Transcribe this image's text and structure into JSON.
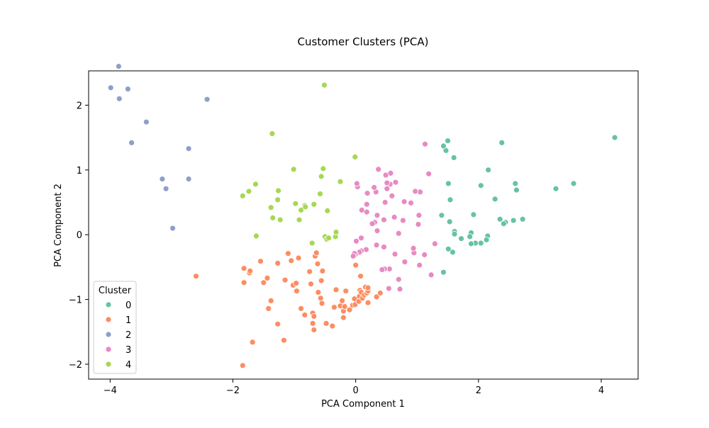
{
  "chart_data": {
    "type": "scatter",
    "title": "Customer Clusters (PCA)",
    "xlabel": "PCA Component 1",
    "ylabel": "PCA Component 2",
    "xlim": [
      -4.35,
      4.6
    ],
    "ylim": [
      -2.23,
      2.53
    ],
    "x_ticks": [
      -4,
      -2,
      0,
      2,
      4
    ],
    "y_ticks": [
      -2,
      -1,
      0,
      1,
      2
    ],
    "x_tick_labels": [
      "−4",
      "−2",
      "0",
      "2",
      "4"
    ],
    "y_tick_labels": [
      "−2",
      "−1",
      "0",
      "1",
      "2"
    ],
    "grid": false,
    "legend": {
      "title": "Cluster",
      "placement": "lower-left",
      "entries": [
        "0",
        "1",
        "2",
        "3",
        "4"
      ]
    },
    "colors": [
      "#66c2a5",
      "#fc8d62",
      "#8da0cb",
      "#e78ac3",
      "#a6d854"
    ],
    "series": [
      {
        "name": "0",
        "points": [
          [
            4.22,
            1.5
          ],
          [
            3.55,
            0.79
          ],
          [
            3.26,
            0.71
          ],
          [
            2.72,
            0.24
          ],
          [
            2.62,
            0.69
          ],
          [
            2.6,
            0.79
          ],
          [
            2.57,
            0.22
          ],
          [
            2.44,
            0.19
          ],
          [
            2.41,
            0.17
          ],
          [
            2.38,
            1.42
          ],
          [
            2.35,
            0.24
          ],
          [
            2.27,
            0.55
          ],
          [
            2.16,
            1.0
          ],
          [
            2.15,
            -0.02
          ],
          [
            2.13,
            -0.08
          ],
          [
            2.04,
            0.76
          ],
          [
            2.04,
            -0.13
          ],
          [
            1.95,
            -0.13
          ],
          [
            1.92,
            0.31
          ],
          [
            1.88,
            -0.14
          ],
          [
            1.88,
            0.03
          ],
          [
            1.86,
            -0.03
          ],
          [
            1.72,
            -0.06
          ],
          [
            1.61,
            0.05
          ],
          [
            1.61,
            0.01
          ],
          [
            1.6,
            1.19
          ],
          [
            1.58,
            -0.27
          ],
          [
            1.54,
            0.54
          ],
          [
            1.53,
            0.2
          ],
          [
            1.51,
            -0.22
          ],
          [
            1.51,
            0.79
          ],
          [
            1.5,
            1.45
          ],
          [
            1.47,
            1.3
          ],
          [
            1.43,
            1.37
          ],
          [
            1.43,
            -0.58
          ],
          [
            1.4,
            0.3
          ]
        ]
      },
      {
        "name": "1",
        "points": [
          [
            -2.6,
            -0.64
          ],
          [
            -1.84,
            -2.02
          ],
          [
            -1.82,
            -0.74
          ],
          [
            -1.82,
            -0.52
          ],
          [
            -1.73,
            -0.59
          ],
          [
            -1.72,
            -0.56
          ],
          [
            -1.68,
            -1.66
          ],
          [
            -1.55,
            -0.41
          ],
          [
            -1.5,
            -0.74
          ],
          [
            -1.44,
            -0.67
          ],
          [
            -1.42,
            -1.14
          ],
          [
            -1.38,
            -1.02
          ],
          [
            -1.27,
            -0.44
          ],
          [
            -1.27,
            -1.38
          ],
          [
            -1.17,
            -1.63
          ],
          [
            -1.15,
            -0.7
          ],
          [
            -1.1,
            -0.29
          ],
          [
            -1.05,
            -0.4
          ],
          [
            -1.02,
            -0.78
          ],
          [
            -0.97,
            -0.75
          ],
          [
            -0.96,
            -0.87
          ],
          [
            -0.93,
            -0.36
          ],
          [
            -0.89,
            -1.14
          ],
          [
            -0.83,
            -1.24
          ],
          [
            -0.75,
            -0.57
          ],
          [
            -0.73,
            -0.76
          ],
          [
            -0.7,
            -1.21
          ],
          [
            -0.7,
            -1.37
          ],
          [
            -0.68,
            -1.47
          ],
          [
            -0.68,
            -1.26
          ],
          [
            -0.66,
            -0.33
          ],
          [
            -0.64,
            -0.28
          ],
          [
            -0.62,
            -0.45
          ],
          [
            -0.61,
            -0.89
          ],
          [
            -0.57,
            -0.98
          ],
          [
            -0.56,
            -0.71
          ],
          [
            -0.55,
            -1.06
          ],
          [
            -0.54,
            -0.56
          ],
          [
            -0.48,
            -1.37
          ],
          [
            -0.38,
            -1.41
          ],
          [
            -0.35,
            -1.12
          ],
          [
            -0.32,
            -0.85
          ],
          [
            -0.25,
            -1.1
          ],
          [
            -0.22,
            -1.02
          ],
          [
            -0.2,
            -1.18
          ],
          [
            -0.2,
            -1.28
          ],
          [
            -0.18,
            -1.11
          ],
          [
            -0.16,
            -0.87
          ],
          [
            -0.1,
            -1.16
          ],
          [
            -0.05,
            -1.09
          ],
          [
            -0.02,
            -0.99
          ],
          [
            -0.01,
            -1.08
          ],
          [
            0.0,
            -0.47
          ],
          [
            0.05,
            -1.03
          ],
          [
            0.06,
            -0.95
          ],
          [
            0.07,
            -0.86
          ],
          [
            0.08,
            -0.64
          ],
          [
            0.09,
            -0.89
          ],
          [
            0.11,
            -0.98
          ],
          [
            0.14,
            -0.93
          ],
          [
            0.16,
            -0.81
          ],
          [
            0.18,
            -0.9
          ],
          [
            0.2,
            -0.87
          ],
          [
            0.2,
            -0.82
          ],
          [
            0.2,
            -1.05
          ],
          [
            0.34,
            -0.96
          ],
          [
            0.4,
            -0.9
          ]
        ]
      },
      {
        "name": "2",
        "points": [
          [
            -3.99,
            2.27
          ],
          [
            -3.86,
            2.6
          ],
          [
            -3.85,
            2.1
          ],
          [
            -3.71,
            2.25
          ],
          [
            -3.65,
            1.42
          ],
          [
            -3.41,
            1.74
          ],
          [
            -3.15,
            0.86
          ],
          [
            -3.09,
            0.71
          ],
          [
            -2.98,
            0.1
          ],
          [
            -2.72,
            1.33
          ],
          [
            -2.72,
            0.86
          ],
          [
            -2.42,
            2.09
          ]
        ]
      },
      {
        "name": "3",
        "points": [
          [
            1.29,
            -0.14
          ],
          [
            1.23,
            -0.62
          ],
          [
            1.19,
            0.94
          ],
          [
            1.13,
            1.4
          ],
          [
            1.12,
            -0.31
          ],
          [
            1.05,
            0.66
          ],
          [
            1.04,
            -0.47
          ],
          [
            1.03,
            0.3
          ],
          [
            1.02,
            0.16
          ],
          [
            0.97,
            0.67
          ],
          [
            0.95,
            -0.28
          ],
          [
            0.94,
            -0.21
          ],
          [
            0.9,
            0.49
          ],
          [
            0.8,
            -0.42
          ],
          [
            0.79,
            0.51
          ],
          [
            0.77,
            0.22
          ],
          [
            0.72,
            -0.84
          ],
          [
            0.7,
            -0.69
          ],
          [
            0.7,
            0.02
          ],
          [
            0.65,
            0.81
          ],
          [
            0.64,
            -0.3
          ],
          [
            0.63,
            0.27
          ],
          [
            0.59,
            0.6
          ],
          [
            0.57,
            0.95
          ],
          [
            0.56,
            0.78
          ],
          [
            0.55,
            -0.53
          ],
          [
            0.54,
            -0.83
          ],
          [
            0.51,
            0.71
          ],
          [
            0.51,
            0.8
          ],
          [
            0.49,
            0.92
          ],
          [
            0.48,
            0.5
          ],
          [
            0.47,
            -0.53
          ],
          [
            0.46,
            -0.19
          ],
          [
            0.46,
            0.23
          ],
          [
            0.43,
            -0.54
          ],
          [
            0.37,
            1.01
          ],
          [
            0.35,
            0.06
          ],
          [
            0.35,
            0.3
          ],
          [
            0.34,
            -0.16
          ],
          [
            0.33,
            0.66
          ],
          [
            0.31,
            0.19
          ],
          [
            0.3,
            0.73
          ],
          [
            0.27,
            0.17
          ],
          [
            0.19,
            0.64
          ],
          [
            0.18,
            0.35
          ],
          [
            0.18,
            0.47
          ],
          [
            0.17,
            -0.23
          ],
          [
            0.1,
            0.38
          ],
          [
            0.09,
            -0.25
          ],
          [
            0.09,
            -0.05
          ],
          [
            0.06,
            -0.27
          ],
          [
            0.03,
            0.74
          ],
          [
            0.02,
            0.79
          ],
          [
            0.01,
            -0.1
          ],
          [
            0.0,
            -0.3
          ],
          [
            -0.02,
            -0.29
          ],
          [
            -0.04,
            -0.33
          ]
        ]
      },
      {
        "name": "4",
        "points": [
          [
            -1.84,
            0.6
          ],
          [
            -1.74,
            0.67
          ],
          [
            -1.63,
            0.78
          ],
          [
            -1.62,
            -0.02
          ],
          [
            -1.38,
            0.42
          ],
          [
            -1.36,
            1.56
          ],
          [
            -1.35,
            0.26
          ],
          [
            -1.27,
            0.54
          ],
          [
            -1.26,
            0.68
          ],
          [
            -1.23,
            0.23
          ],
          [
            -1.01,
            1.01
          ],
          [
            -0.98,
            0.48
          ],
          [
            -0.92,
            0.23
          ],
          [
            -0.89,
            0.38
          ],
          [
            -0.83,
            0.45
          ],
          [
            -0.82,
            0.43
          ],
          [
            -0.71,
            -0.13
          ],
          [
            -0.68,
            0.47
          ],
          [
            -0.58,
            0.63
          ],
          [
            -0.56,
            0.9
          ],
          [
            -0.53,
            1.02
          ],
          [
            -0.51,
            2.31
          ],
          [
            -0.5,
            -0.03
          ],
          [
            -0.47,
            -0.07
          ],
          [
            -0.46,
            0.37
          ],
          [
            -0.44,
            -0.05
          ],
          [
            -0.33,
            -0.03
          ],
          [
            -0.32,
            0.04
          ],
          [
            -0.25,
            0.82
          ],
          [
            -0.01,
            1.2
          ]
        ]
      }
    ]
  }
}
